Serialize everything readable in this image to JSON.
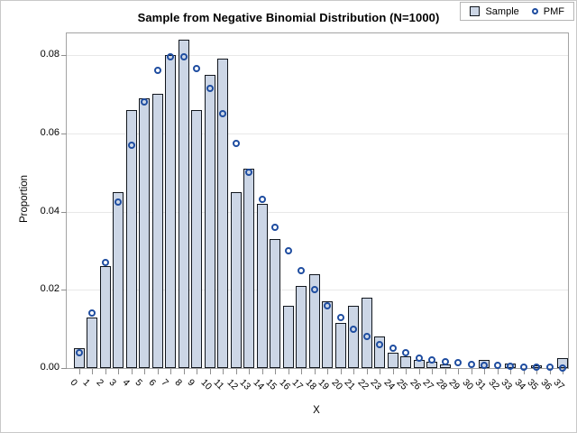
{
  "title": "Sample from Negative Binomial Distribution (N=1000)",
  "axes": {
    "x_label": "X",
    "y_label": "Proportion"
  },
  "legend": {
    "items": [
      {
        "label": "Sample",
        "marker": "square-swatch"
      },
      {
        "label": "PMF",
        "marker": "open-circle"
      }
    ]
  },
  "colors": {
    "bar_fill": "#ccd6e6",
    "bar_border": "#11161d",
    "pmf_marker": "#1f4da0",
    "gridline": "#e8e8e8",
    "axis_frame": "#a3a3a3",
    "tick": "#8f8f8f",
    "figure_border": "#c9c9c9",
    "background": "#ffffff"
  },
  "chart_data": {
    "type": "bar",
    "title": "Sample from Negative Binomial Distribution (N=1000)",
    "xlabel": "X",
    "ylabel": "Proportion",
    "categories": [
      0,
      1,
      2,
      3,
      4,
      5,
      6,
      7,
      8,
      9,
      10,
      11,
      12,
      13,
      14,
      15,
      16,
      17,
      18,
      19,
      20,
      21,
      22,
      23,
      24,
      25,
      26,
      27,
      28,
      29,
      30,
      31,
      32,
      33,
      34,
      35,
      36,
      37
    ],
    "series": [
      {
        "name": "Sample",
        "type": "bar",
        "values": [
          0.005,
          0.013,
          0.026,
          0.045,
          0.066,
          0.069,
          0.07,
          0.08,
          0.084,
          0.066,
          0.075,
          0.079,
          0.045,
          0.051,
          0.042,
          0.033,
          0.016,
          0.021,
          0.024,
          0.017,
          0.0115,
          0.016,
          0.018,
          0.008,
          0.004,
          0.003,
          0.002,
          0.0016,
          0.001,
          0,
          0,
          0.002,
          0,
          0.0012,
          0,
          0.0008,
          0,
          0.0025
        ]
      },
      {
        "name": "PMF",
        "type": "scatter",
        "values": [
          0.004,
          0.014,
          0.027,
          0.0425,
          0.057,
          0.068,
          0.076,
          0.0795,
          0.0795,
          0.0765,
          0.0715,
          0.065,
          0.0575,
          0.05,
          0.043,
          0.036,
          0.03,
          0.025,
          0.02,
          0.016,
          0.013,
          0.01,
          0.008,
          0.006,
          0.005,
          0.004,
          0.0025,
          0.002,
          0.0016,
          0.0013,
          0.001,
          0.0008,
          0.0006,
          0.0005,
          0.0003,
          0.0003,
          0.0002,
          0.0001
        ]
      }
    ],
    "ylim": [
      0,
      0.085
    ],
    "yticks": [
      0,
      0.02,
      0.04,
      0.06,
      0.08
    ],
    "grid": true,
    "legend_position": "top-right-inside"
  }
}
